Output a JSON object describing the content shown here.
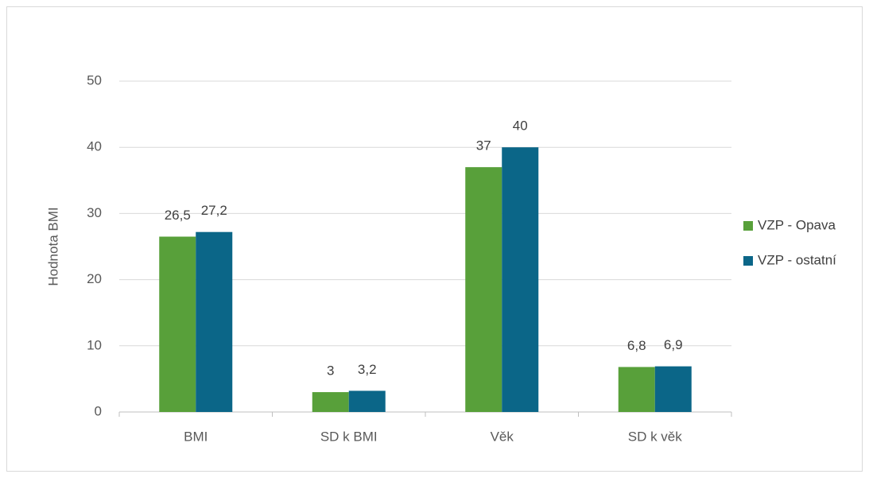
{
  "chart_data": {
    "type": "bar",
    "y_label": "Hodnota BMI",
    "categories": [
      "BMI",
      "SD k BMI",
      "Věk",
      "SD k věk"
    ],
    "series": [
      {
        "name": "VZP - Opava",
        "color": "#58a03a",
        "values": [
          26.5,
          3,
          37,
          6.8
        ],
        "value_labels": [
          "26,5",
          "3",
          "37",
          "6,8"
        ]
      },
      {
        "name": "VZP - ostatní",
        "color": "#0b6688",
        "values": [
          27.2,
          3.2,
          40,
          6.9
        ],
        "value_labels": [
          "27,2",
          "3,2",
          "40",
          "6,9"
        ]
      }
    ],
    "ylim": [
      0,
      50
    ],
    "yticks": [
      0,
      10,
      20,
      30,
      40,
      50
    ],
    "grid": true,
    "legend": "right"
  }
}
